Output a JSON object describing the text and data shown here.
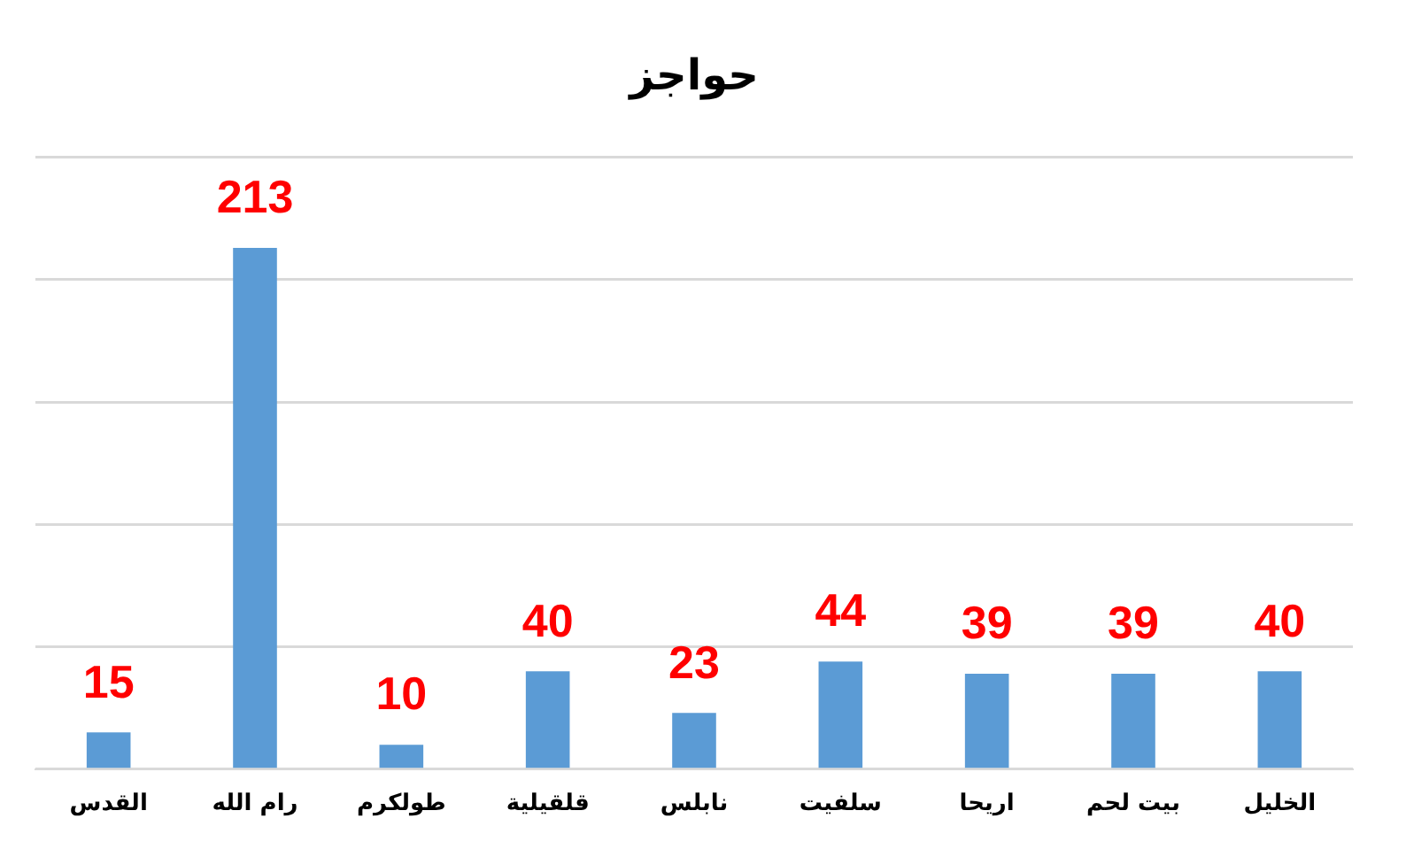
{
  "chart_data": {
    "type": "bar",
    "title": "حواجز",
    "categories": [
      "القدس",
      "رام الله",
      "طولكرم",
      "قلقيلية",
      "نابلس",
      "سلفيت",
      "اريحا",
      "بيت لحم",
      "الخليل"
    ],
    "values": [
      15,
      213,
      10,
      40,
      23,
      44,
      39,
      39,
      40
    ],
    "color": "#5b9bd5",
    "ylim": [
      0,
      250
    ],
    "yticks": [
      {
        "value": 0,
        "label": null
      },
      {
        "value": 50,
        "label": null
      },
      {
        "value": 100,
        "label": null
      },
      {
        "value": 150,
        "label": null
      },
      {
        "value": 200,
        "label": null
      },
      {
        "value": 250,
        "label": null
      }
    ],
    "grid": "y",
    "tick_labels": "x",
    "data_labels": true,
    "legend": false
  }
}
